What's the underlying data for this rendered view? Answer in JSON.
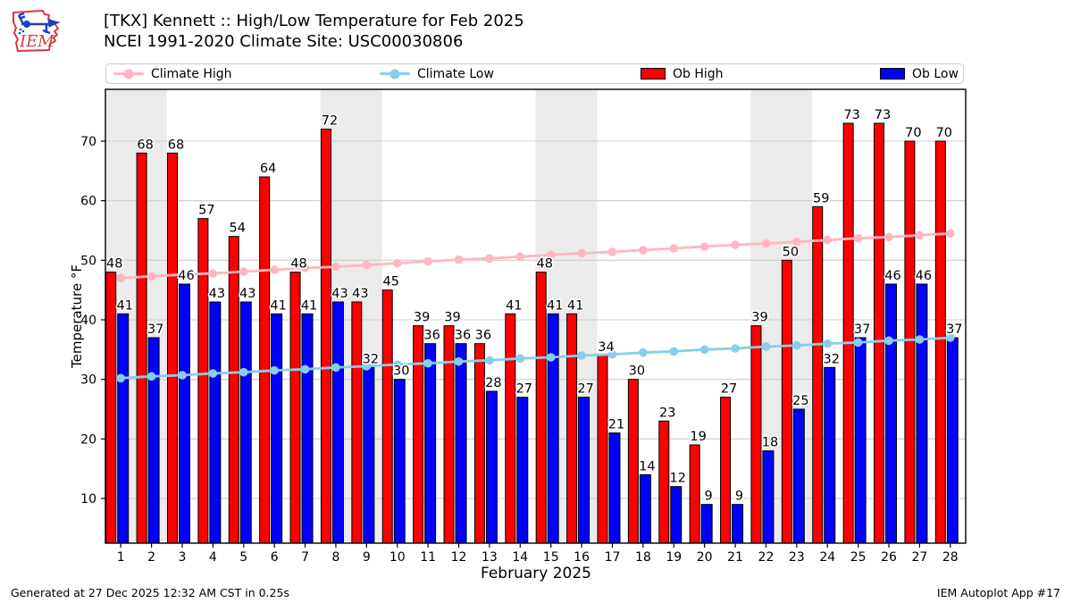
{
  "header": {
    "title_line1": "[TKX] Kennett :: High/Low Temperature for Feb 2025",
    "title_line2": "NCEI 1991-2020 Climate Site: USC00030806",
    "logo_text": "IEM"
  },
  "legend": {
    "items": [
      {
        "label": "Climate High",
        "type": "line",
        "color": "#ffb6c1"
      },
      {
        "label": "Climate Low",
        "type": "line",
        "color": "#87ceeb"
      },
      {
        "label": "Ob High",
        "type": "patch",
        "color": "#ff0000"
      },
      {
        "label": "Ob Low",
        "type": "patch",
        "color": "#0000ff"
      }
    ]
  },
  "footer": {
    "left": "Generated at 27 Dec 2025 12:32 AM CST in 0.25s",
    "right": "IEM Autoplot App #17"
  },
  "chart_data": {
    "type": "bar",
    "title": "[TKX] Kennett :: High/Low Temperature for Feb 2025",
    "subtitle": "NCEI 1991-2020 Climate Site: USC00030806",
    "xlabel": "February 2025",
    "ylabel": "Temperature °F",
    "x": [
      1,
      2,
      3,
      4,
      5,
      6,
      7,
      8,
      9,
      10,
      11,
      12,
      13,
      14,
      15,
      16,
      17,
      18,
      19,
      20,
      21,
      22,
      23,
      24,
      25,
      26,
      27,
      28
    ],
    "series": [
      {
        "name": "Ob High",
        "type": "bar",
        "color": "#ff0000",
        "values": [
          48,
          68,
          68,
          57,
          54,
          64,
          48,
          72,
          43,
          45,
          39,
          39,
          36,
          41,
          48,
          41,
          34,
          30,
          23,
          19,
          27,
          39,
          50,
          59,
          73,
          73,
          70,
          70
        ]
      },
      {
        "name": "Ob Low",
        "type": "bar",
        "color": "#0000ff",
        "values": [
          41,
          37,
          46,
          43,
          43,
          41,
          41,
          43,
          32,
          30,
          36,
          36,
          28,
          27,
          41,
          27,
          21,
          14,
          12,
          9,
          9,
          18,
          25,
          32,
          37,
          46,
          46,
          37
        ]
      },
      {
        "name": "Climate High",
        "type": "line",
        "color": "#ffb6c1",
        "values": [
          47.0,
          47.3,
          47.6,
          47.8,
          48.1,
          48.4,
          48.7,
          48.9,
          49.2,
          49.5,
          49.8,
          50.1,
          50.3,
          50.6,
          50.9,
          51.2,
          51.4,
          51.7,
          52.0,
          52.3,
          52.6,
          52.8,
          53.1,
          53.4,
          53.7,
          53.9,
          54.2,
          54.5
        ]
      },
      {
        "name": "Climate Low",
        "type": "line",
        "color": "#87ceeb",
        "values": [
          30.2,
          30.5,
          30.7,
          31.0,
          31.2,
          31.5,
          31.7,
          32.0,
          32.2,
          32.5,
          32.7,
          33.0,
          33.2,
          33.5,
          33.7,
          34.0,
          34.2,
          34.5,
          34.7,
          35.0,
          35.2,
          35.5,
          35.7,
          36.0,
          36.2,
          36.5,
          36.7,
          37.0
        ]
      }
    ],
    "ylim": [
      2.5,
      78.7
    ],
    "yticks": [
      10,
      20,
      30,
      40,
      50,
      60,
      70
    ],
    "grid": true,
    "bar_value_labels": true,
    "weekend_shading_days": [
      [
        1,
        2
      ],
      [
        8,
        9
      ],
      [
        15,
        16
      ],
      [
        22,
        23
      ]
    ],
    "weekend_band_color": "#ebebeb",
    "grid_color": "#cccccc",
    "legend_position": "top"
  }
}
